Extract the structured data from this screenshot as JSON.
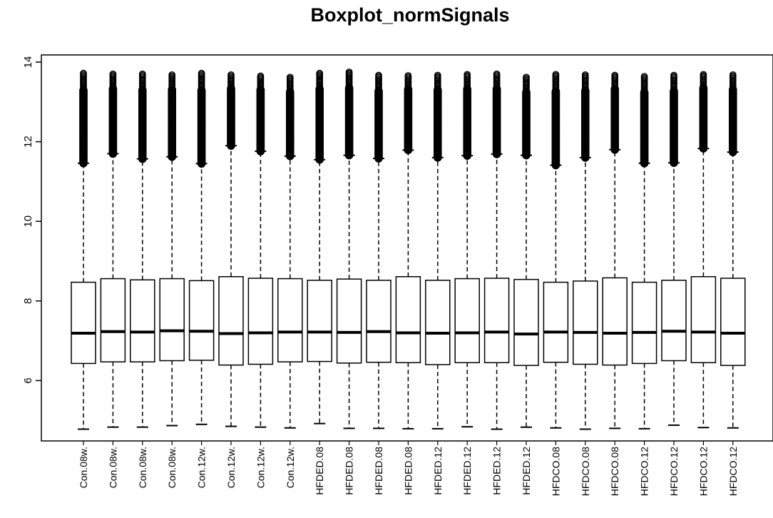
{
  "chart_data": {
    "type": "boxplot",
    "title": "Boxplot_normSignals",
    "xlabel": "",
    "ylabel": "",
    "ylim": [
      4.6,
      14.2
    ],
    "yticks": [
      6,
      8,
      10,
      12,
      14
    ],
    "grid": false,
    "categories": [
      "Con.08w.",
      "Con.08w.",
      "Con.08w.",
      "Con.08w.",
      "Con.12w.",
      "Con.12w.",
      "Con.12w.",
      "Con.12w.",
      "HFDED.08",
      "HFDED.08",
      "HFDED.08",
      "HFDED.08",
      "HFDED.12",
      "HFDED.12",
      "HFDED.12",
      "HFDED.12",
      "HFDCO.08",
      "HFDCO.08",
      "HFDCO.08",
      "HFDCO.12",
      "HFDCO.12",
      "HFDCO.12",
      "HFDCO.12"
    ],
    "boxes": [
      {
        "min": 4.78,
        "q1": 6.43,
        "median": 7.19,
        "q3": 8.47,
        "upper_whisker": 11.46,
        "outlier_max": 13.72
      },
      {
        "min": 4.83,
        "q1": 6.47,
        "median": 7.23,
        "q3": 8.56,
        "upper_whisker": 11.7,
        "outlier_max": 13.7
      },
      {
        "min": 4.83,
        "q1": 6.47,
        "median": 7.22,
        "q3": 8.53,
        "upper_whisker": 11.57,
        "outlier_max": 13.7
      },
      {
        "min": 4.87,
        "q1": 6.5,
        "median": 7.25,
        "q3": 8.56,
        "upper_whisker": 11.62,
        "outlier_max": 13.68
      },
      {
        "min": 4.9,
        "q1": 6.51,
        "median": 7.24,
        "q3": 8.51,
        "upper_whisker": 11.45,
        "outlier_max": 13.72
      },
      {
        "min": 4.85,
        "q1": 6.39,
        "median": 7.18,
        "q3": 8.61,
        "upper_whisker": 11.9,
        "outlier_max": 13.68
      },
      {
        "min": 4.83,
        "q1": 6.41,
        "median": 7.2,
        "q3": 8.57,
        "upper_whisker": 11.76,
        "outlier_max": 13.65
      },
      {
        "min": 4.81,
        "q1": 6.47,
        "median": 7.22,
        "q3": 8.56,
        "upper_whisker": 11.64,
        "outlier_max": 13.62
      },
      {
        "min": 4.92,
        "q1": 6.48,
        "median": 7.22,
        "q3": 8.52,
        "upper_whisker": 11.55,
        "outlier_max": 13.72
      },
      {
        "min": 4.8,
        "q1": 6.44,
        "median": 7.21,
        "q3": 8.55,
        "upper_whisker": 11.66,
        "outlier_max": 13.75
      },
      {
        "min": 4.8,
        "q1": 6.46,
        "median": 7.23,
        "q3": 8.52,
        "upper_whisker": 11.58,
        "outlier_max": 13.67
      },
      {
        "min": 4.79,
        "q1": 6.45,
        "median": 7.2,
        "q3": 8.61,
        "upper_whisker": 11.79,
        "outlier_max": 13.66
      },
      {
        "min": 4.79,
        "q1": 6.4,
        "median": 7.19,
        "q3": 8.52,
        "upper_whisker": 11.6,
        "outlier_max": 13.67
      },
      {
        "min": 4.84,
        "q1": 6.45,
        "median": 7.2,
        "q3": 8.56,
        "upper_whisker": 11.65,
        "outlier_max": 13.69
      },
      {
        "min": 4.78,
        "q1": 6.45,
        "median": 7.22,
        "q3": 8.57,
        "upper_whisker": 11.69,
        "outlier_max": 13.7
      },
      {
        "min": 4.83,
        "q1": 6.38,
        "median": 7.17,
        "q3": 8.54,
        "upper_whisker": 11.66,
        "outlier_max": 13.62
      },
      {
        "min": 4.81,
        "q1": 6.46,
        "median": 7.22,
        "q3": 8.47,
        "upper_whisker": 11.41,
        "outlier_max": 13.69
      },
      {
        "min": 4.78,
        "q1": 6.41,
        "median": 7.21,
        "q3": 8.5,
        "upper_whisker": 11.6,
        "outlier_max": 13.68
      },
      {
        "min": 4.8,
        "q1": 6.39,
        "median": 7.19,
        "q3": 8.58,
        "upper_whisker": 11.8,
        "outlier_max": 13.67
      },
      {
        "min": 4.79,
        "q1": 6.43,
        "median": 7.21,
        "q3": 8.47,
        "upper_whisker": 11.46,
        "outlier_max": 13.64
      },
      {
        "min": 4.88,
        "q1": 6.5,
        "median": 7.24,
        "q3": 8.52,
        "upper_whisker": 11.47,
        "outlier_max": 13.67
      },
      {
        "min": 4.82,
        "q1": 6.45,
        "median": 7.22,
        "q3": 8.61,
        "upper_whisker": 11.83,
        "outlier_max": 13.69
      },
      {
        "min": 4.81,
        "q1": 6.38,
        "median": 7.19,
        "q3": 8.57,
        "upper_whisker": 11.74,
        "outlier_max": 13.68
      }
    ]
  }
}
